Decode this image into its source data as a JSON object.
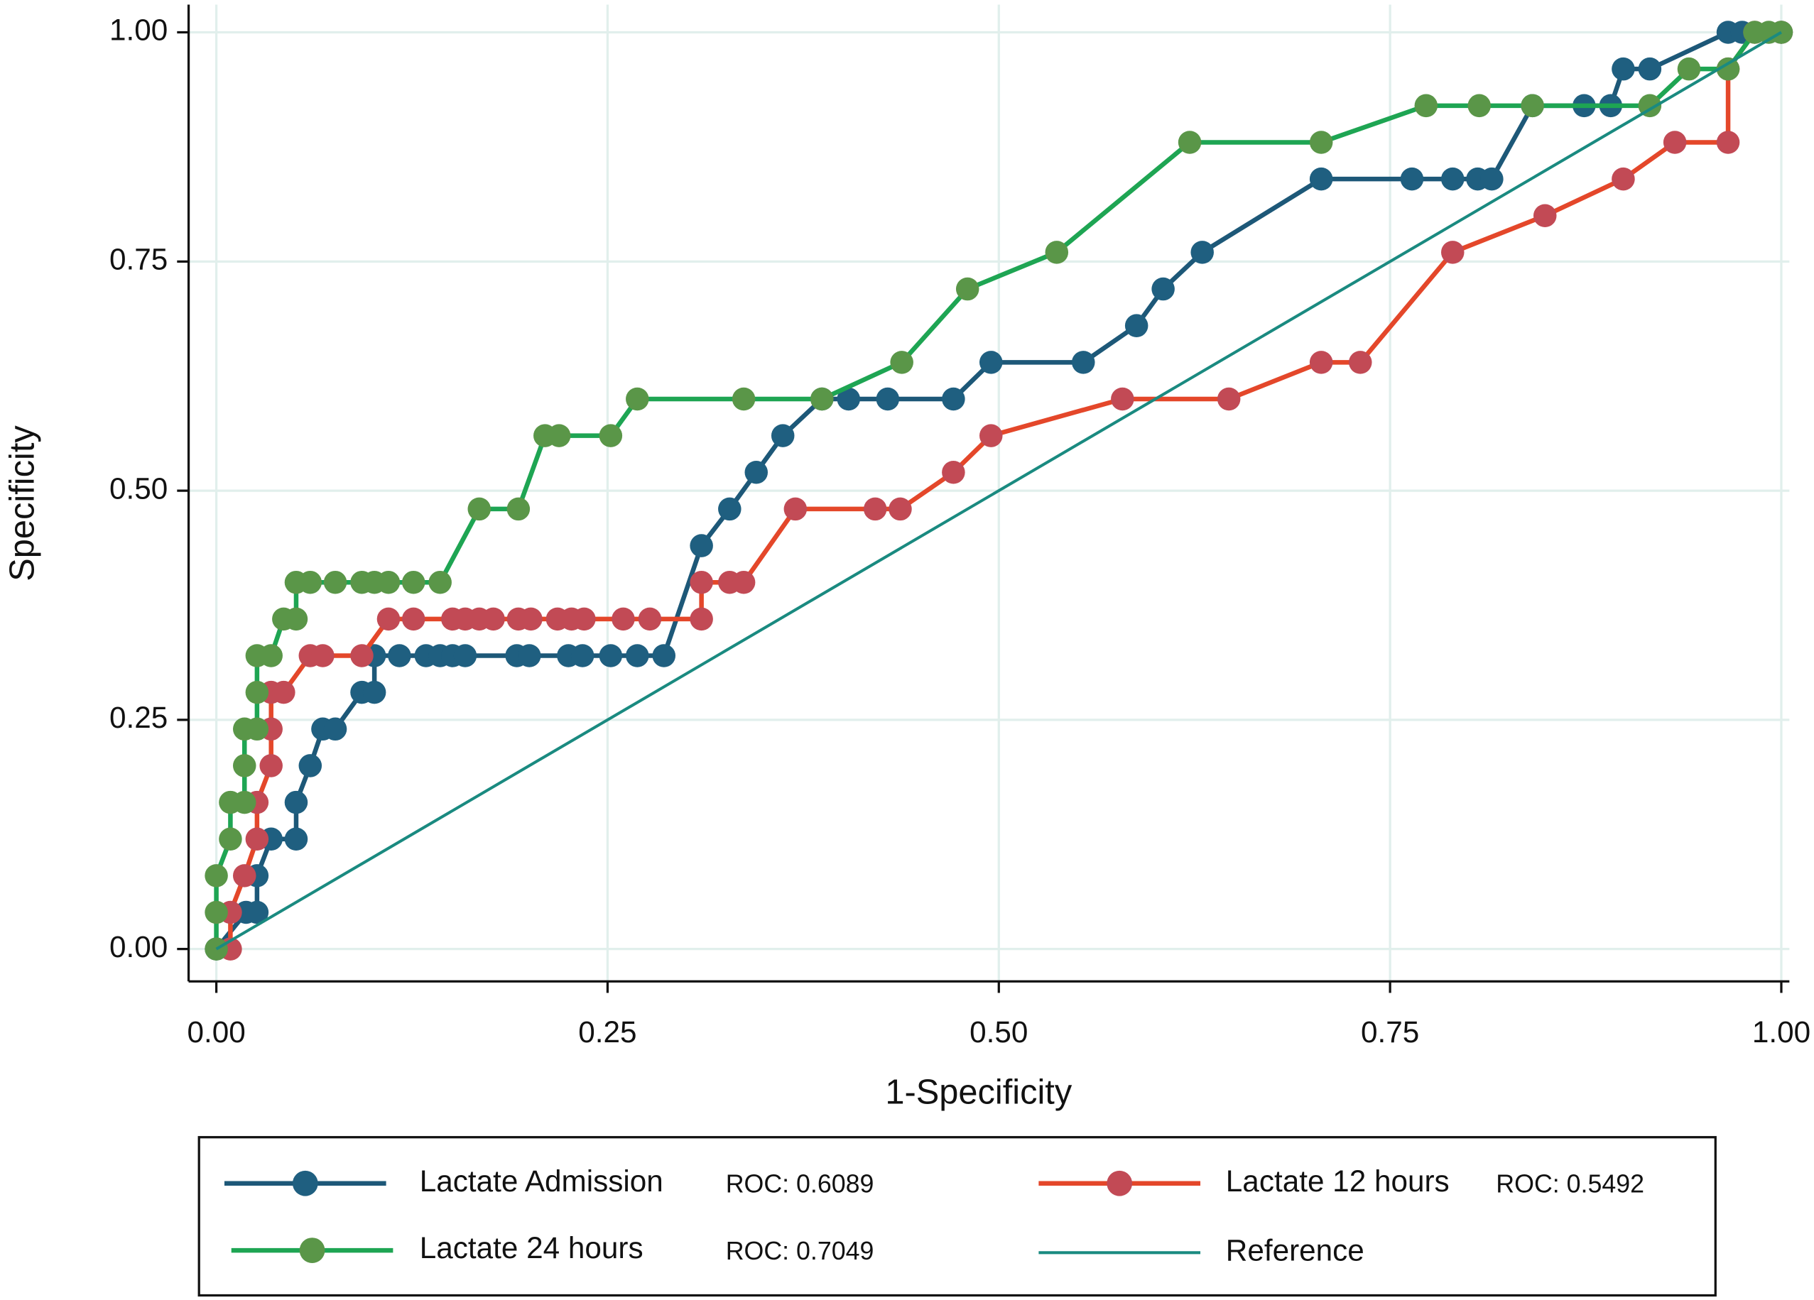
{
  "chart_data": {
    "type": "line",
    "xlabel": "1-Specificity",
    "ylabel": "Specificity",
    "xlim": [
      0,
      1
    ],
    "ylim": [
      0,
      1
    ],
    "xticks": [
      {
        "value": 0,
        "label": "0.00"
      },
      {
        "value": 0.25,
        "label": "0.25"
      },
      {
        "value": 0.5,
        "label": "0.50"
      },
      {
        "value": 0.75,
        "label": "0.75"
      },
      {
        "value": 1,
        "label": "1.00"
      }
    ],
    "yticks": [
      {
        "value": 0,
        "label": "0.00"
      },
      {
        "value": 0.25,
        "label": "0.25"
      },
      {
        "value": 0.5,
        "label": "0.50"
      },
      {
        "value": 0.75,
        "label": "0.75"
      },
      {
        "value": 1,
        "label": "1.00"
      }
    ],
    "grid": true,
    "series": [
      {
        "name": "Lactate Admission",
        "roc_label": "ROC: 0.6089",
        "color": "#1d5878",
        "marker_color": "#1f5f80",
        "markers": true,
        "x": [
          0,
          0.019,
          0.026,
          0.026,
          0.035,
          0.051,
          0.051,
          0.06,
          0.068,
          0.076,
          0.093,
          0.101,
          0.101,
          0.117,
          0.134,
          0.143,
          0.151,
          0.159,
          0.192,
          0.2,
          0.225,
          0.234,
          0.252,
          0.269,
          0.286,
          0.31,
          0.328,
          0.345,
          0.362,
          0.387,
          0.404,
          0.429,
          0.471,
          0.495,
          0.554,
          0.588,
          0.605,
          0.63,
          0.706,
          0.764,
          0.79,
          0.806,
          0.815,
          0.841,
          0.874,
          0.891,
          0.899,
          0.916,
          0.966,
          0.975,
          1
        ],
        "values": [
          0,
          0.04,
          0.04,
          0.08,
          0.12,
          0.12,
          0.16,
          0.2,
          0.24,
          0.24,
          0.28,
          0.28,
          0.32,
          0.32,
          0.32,
          0.32,
          0.32,
          0.32,
          0.32,
          0.32,
          0.32,
          0.32,
          0.32,
          0.32,
          0.32,
          0.44,
          0.48,
          0.52,
          0.56,
          0.6,
          0.6,
          0.6,
          0.6,
          0.64,
          0.64,
          0.68,
          0.72,
          0.76,
          0.84,
          0.84,
          0.84,
          0.84,
          0.84,
          0.92,
          0.92,
          0.92,
          0.96,
          0.96,
          1,
          1,
          1
        ]
      },
      {
        "name": "Lactate 12 hours",
        "roc_label": "ROC: 0.5492",
        "color": "#e4472a",
        "marker_color": "#c24a55",
        "markers": true,
        "x": [
          0.009,
          0.009,
          0.018,
          0.026,
          0.026,
          0.035,
          0.035,
          0.035,
          0.043,
          0.06,
          0.068,
          0.093,
          0.11,
          0.126,
          0.151,
          0.159,
          0.168,
          0.177,
          0.193,
          0.201,
          0.218,
          0.227,
          0.235,
          0.26,
          0.277,
          0.31,
          0.31,
          0.328,
          0.337,
          0.37,
          0.421,
          0.437,
          0.471,
          0.495,
          0.579,
          0.647,
          0.706,
          0.731,
          0.79,
          0.849,
          0.899,
          0.932,
          0.966,
          0.966,
          0.983,
          1
        ],
        "values": [
          0,
          0.04,
          0.08,
          0.12,
          0.16,
          0.2,
          0.24,
          0.28,
          0.28,
          0.32,
          0.32,
          0.32,
          0.36,
          0.36,
          0.36,
          0.36,
          0.36,
          0.36,
          0.36,
          0.36,
          0.36,
          0.36,
          0.36,
          0.36,
          0.36,
          0.36,
          0.4,
          0.4,
          0.4,
          0.48,
          0.48,
          0.48,
          0.52,
          0.56,
          0.6,
          0.6,
          0.64,
          0.64,
          0.76,
          0.8,
          0.84,
          0.88,
          0.88,
          0.96,
          1,
          1
        ]
      },
      {
        "name": "Lactate 24 hours",
        "roc_label": "ROC: 0.7049",
        "color": "#1ea553",
        "marker_color": "#5a9648",
        "markers": true,
        "x": [
          0,
          0,
          0,
          0.009,
          0.009,
          0.018,
          0.018,
          0.018,
          0.026,
          0.026,
          0.026,
          0.035,
          0.043,
          0.051,
          0.051,
          0.06,
          0.076,
          0.093,
          0.101,
          0.11,
          0.126,
          0.143,
          0.168,
          0.193,
          0.21,
          0.219,
          0.252,
          0.269,
          0.337,
          0.387,
          0.438,
          0.48,
          0.537,
          0.622,
          0.706,
          0.773,
          0.807,
          0.841,
          0.916,
          0.941,
          0.966,
          0.983,
          0.992,
          1
        ],
        "values": [
          0,
          0.04,
          0.08,
          0.12,
          0.16,
          0.16,
          0.2,
          0.24,
          0.24,
          0.28,
          0.32,
          0.32,
          0.36,
          0.36,
          0.4,
          0.4,
          0.4,
          0.4,
          0.4,
          0.4,
          0.4,
          0.4,
          0.48,
          0.48,
          0.56,
          0.56,
          0.56,
          0.6,
          0.6,
          0.6,
          0.64,
          0.72,
          0.76,
          0.88,
          0.88,
          0.92,
          0.92,
          0.92,
          0.92,
          0.96,
          0.96,
          1,
          1,
          1
        ]
      },
      {
        "name": "Reference",
        "color": "#1a8a80",
        "markers": false,
        "x": [
          0,
          1
        ],
        "values": [
          0,
          1
        ]
      }
    ]
  }
}
